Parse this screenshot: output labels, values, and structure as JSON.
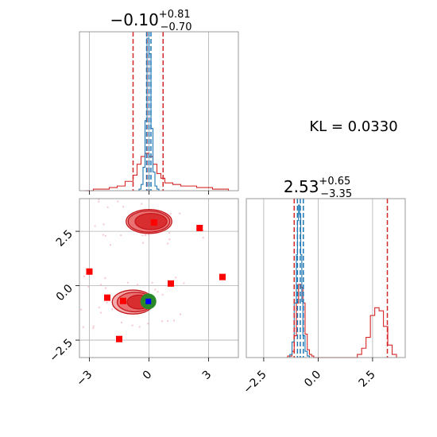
{
  "chart_data": [
    {
      "type": "histogram",
      "panel": "top-left",
      "title_main": "−0.10",
      "title_sup": "+0.81",
      "title_sub": "−0.70",
      "xlim": [
        -3.5,
        4.5
      ],
      "grid": true,
      "series": [
        {
          "name": "",
          "color": "#d62728",
          "bins": [
            -3.2,
            -2.8,
            -2.4,
            -2.0,
            -1.6,
            -1.2,
            -0.8,
            -0.6,
            -0.4,
            -0.2,
            0.0,
            0.2,
            0.4,
            0.6,
            0.8,
            1.2,
            1.6,
            2.0,
            2.4,
            2.8,
            3.2,
            3.6,
            4.0
          ],
          "heights": [
            0.0,
            0.01,
            0.01,
            0.02,
            0.03,
            0.06,
            0.1,
            0.17,
            0.22,
            0.24,
            0.22,
            0.17,
            0.11,
            0.08,
            0.05,
            0.04,
            0.03,
            0.03,
            0.02,
            0.02,
            0.01,
            0.01
          ]
        },
        {
          "name": "",
          "color": "#1f77b4",
          "bins": [
            -0.5,
            -0.4,
            -0.3,
            -0.2,
            -0.1,
            0.0,
            0.1,
            0.2,
            0.3,
            0.4,
            0.5
          ],
          "heights": [
            0.01,
            0.04,
            0.15,
            0.45,
            0.98,
            0.88,
            0.4,
            0.12,
            0.03,
            0.01
          ]
        }
      ],
      "vlines": [
        {
          "x": -0.8,
          "color": "#d62728"
        },
        {
          "x": -0.1,
          "color": "#d62728"
        },
        {
          "x": 0.71,
          "color": "#d62728"
        },
        {
          "x": -0.12,
          "color": "#1f77b4"
        },
        {
          "x": 0.0,
          "color": "#1f77b4"
        },
        {
          "x": 0.1,
          "color": "#1f77b4"
        }
      ]
    },
    {
      "type": "scatter",
      "panel": "bottom-left",
      "xlim": [
        -3.5,
        4.5
      ],
      "ylim": [
        -3.3,
        4.0
      ],
      "x_ticks": [
        "−3",
        "0",
        "3"
      ],
      "x_tick_values": [
        -3,
        0,
        3
      ],
      "y_ticks": [
        "−2.5",
        "0.0",
        "2.5"
      ],
      "y_tick_values": [
        -2.5,
        0.0,
        2.5
      ],
      "grid": true,
      "contours": [
        {
          "cx": 0.0,
          "cy": 2.95,
          "rx": 1.15,
          "ry": 0.55
        },
        {
          "cx": 0.0,
          "cy": 2.95,
          "rx": 1.05,
          "ry": 0.49
        },
        {
          "cx": 0.1,
          "cy": 2.95,
          "rx": 0.8,
          "ry": 0.37
        },
        {
          "cx": -0.8,
          "cy": -0.75,
          "rx": 1.05,
          "ry": 0.55
        },
        {
          "cx": -0.7,
          "cy": -0.75,
          "rx": 0.9,
          "ry": 0.45
        },
        {
          "cx": -0.5,
          "cy": -0.75,
          "rx": 0.6,
          "ry": 0.32
        }
      ],
      "squares": [
        {
          "x": -3.0,
          "y": 0.65
        },
        {
          "x": -2.1,
          "y": -0.55
        },
        {
          "x": -1.5,
          "y": -2.45
        },
        {
          "x": 0.25,
          "y": 2.9
        },
        {
          "x": 1.1,
          "y": 0.1
        },
        {
          "x": 2.55,
          "y": 2.65
        },
        {
          "x": 3.7,
          "y": 0.4
        },
        {
          "x": -1.3,
          "y": -0.7
        }
      ],
      "target": {
        "x": -0.03,
        "y": -0.72
      },
      "target_color": "#2a8a2a",
      "marker_color": "#0000ff"
    },
    {
      "type": "histogram",
      "panel": "bottom-right",
      "title_main": "2.53",
      "title_sup": "+0.65",
      "title_sub": "−3.35",
      "xlim": [
        -3.3,
        4.0
      ],
      "x_ticks": [
        "−2.5",
        "0.0",
        "2.5"
      ],
      "x_tick_values": [
        -2.5,
        0.0,
        2.5
      ],
      "grid": true,
      "series": [
        {
          "name": "",
          "color": "#d62728",
          "bins": [
            -1.4,
            -1.2,
            -1.1,
            -1.0,
            -0.9,
            -0.8,
            -0.7,
            -0.6,
            -0.5,
            -0.4,
            -0.3,
            -0.2,
            1.8,
            2.0,
            2.2,
            2.4,
            2.6,
            2.8,
            3.0,
            3.2,
            3.4,
            3.6
          ],
          "heights": [
            0.01,
            0.04,
            0.14,
            0.35,
            0.47,
            0.45,
            0.35,
            0.15,
            0.05,
            0.02,
            0.01,
            0.0,
            0.02,
            0.06,
            0.13,
            0.27,
            0.32,
            0.3,
            0.2,
            0.08,
            0.02
          ]
        },
        {
          "name": "",
          "color": "#1f77b4",
          "bins": [
            -1.3,
            -1.2,
            -1.1,
            -1.0,
            -0.95,
            -0.9,
            -0.85,
            -0.8,
            -0.75,
            -0.7,
            -0.6,
            -0.5,
            -0.4
          ],
          "heights": [
            0.02,
            0.1,
            0.35,
            0.66,
            0.88,
            0.98,
            0.92,
            0.66,
            0.36,
            0.14,
            0.04,
            0.01
          ]
        }
      ],
      "vlines": [
        {
          "x": -1.1,
          "color": "#d62728"
        },
        {
          "x": 3.18,
          "color": "#d62728"
        },
        {
          "x": -0.95,
          "color": "#1f77b4"
        },
        {
          "x": -0.82,
          "color": "#1f77b4"
        },
        {
          "x": -0.68,
          "color": "#1f77b4"
        }
      ]
    }
  ],
  "annotation": {
    "kl_text": "KL = 0.0330"
  }
}
